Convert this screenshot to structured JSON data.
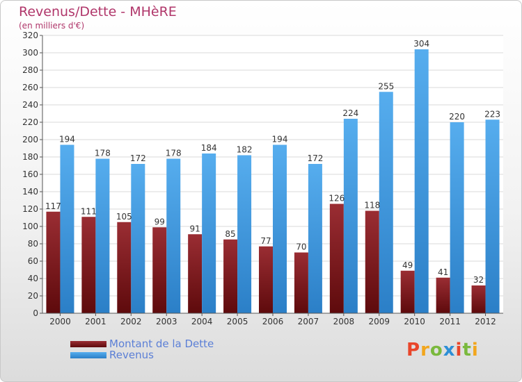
{
  "chart_data": {
    "type": "bar",
    "title": "Revenus/Dette - MHèRE",
    "subtitle": "(en milliers d'€)",
    "categories": [
      "2000",
      "2001",
      "2002",
      "2003",
      "2004",
      "2005",
      "2006",
      "2007",
      "2008",
      "2009",
      "2010",
      "2011",
      "2012"
    ],
    "series": [
      {
        "name": "Montant de la Dette",
        "color": "#7a1416",
        "values": [
          117,
          111,
          105,
          99,
          91,
          85,
          77,
          70,
          126,
          118,
          49,
          41,
          32
        ]
      },
      {
        "name": "Revenus",
        "color": "#3f9be0",
        "values": [
          194,
          178,
          172,
          178,
          184,
          182,
          194,
          172,
          224,
          255,
          304,
          220,
          223
        ]
      }
    ],
    "ylim": [
      0,
      320
    ],
    "ytick_step": 20,
    "grid": true,
    "legend_position": "bottom-left"
  },
  "branding": {
    "logo_text": "Proxiti",
    "logo_colors": [
      "#e9462b",
      "#f2a61d",
      "#7ab93d",
      "#2d8fd6",
      "#e9462b",
      "#7ab93d",
      "#f2a61d"
    ]
  }
}
